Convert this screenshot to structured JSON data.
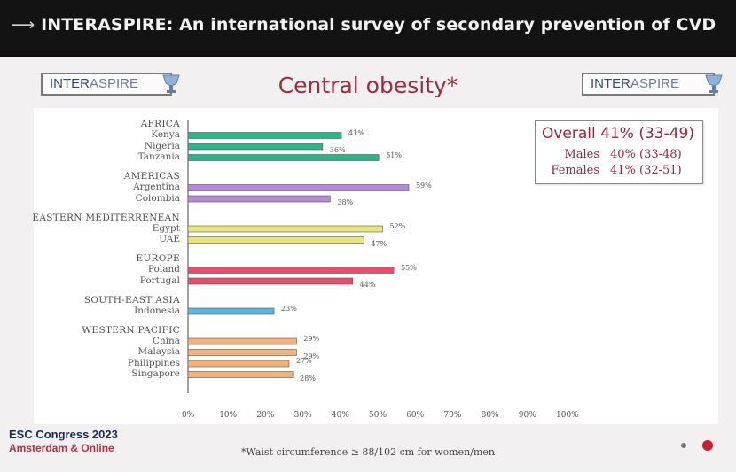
{
  "header": {
    "arrow": "⟶",
    "title": "INTERASPIRE: An international survey of secondary prevention of CVD"
  },
  "logo": {
    "text_a": "INTER",
    "text_b": "ASPIRE"
  },
  "slide_title": "Central obesity*",
  "overall": {
    "main": "Overall 41% (33-49)",
    "males_label": "Males",
    "males_value": "40% (33-48)",
    "females_label": "Females",
    "females_value": "41% (32-51)"
  },
  "footer": {
    "congress": "ESC Congress 2023",
    "location": "Amsterdam & Online",
    "note": "*Waist circumference ≥ 88/102 cm for women/men"
  },
  "colors": {
    "africa": "#2db58a",
    "americas": "#b48ad8",
    "eastern_mediterranean": "#e9e57a",
    "europe": "#e2506a",
    "south_east_asia": "#5db4dd",
    "western_pacific": "#f2b27a"
  },
  "chart_data": {
    "type": "bar",
    "orientation": "horizontal",
    "xlim": [
      0,
      100
    ],
    "xticks": [
      "0%",
      "10%",
      "20%",
      "30%",
      "40%",
      "50%",
      "60%",
      "70%",
      "80%",
      "90%",
      "100%"
    ],
    "regions": [
      {
        "name": "AFRICA",
        "color_key": "africa",
        "countries": [
          {
            "name": "Kenya",
            "value": 41,
            "label": "41%"
          },
          {
            "name": "Nigeria",
            "value": 36,
            "label": "36%"
          },
          {
            "name": "Tanzania",
            "value": 51,
            "label": "51%"
          }
        ]
      },
      {
        "name": "AMERICAS",
        "color_key": "americas",
        "countries": [
          {
            "name": "Argentina",
            "value": 59,
            "label": "59%"
          },
          {
            "name": "Colombia",
            "value": 38,
            "label": "38%"
          }
        ]
      },
      {
        "name": "EASTERN MEDITERRENEAN",
        "color_key": "eastern_mediterranean",
        "countries": [
          {
            "name": "Egypt",
            "value": 52,
            "label": "52%"
          },
          {
            "name": "UAE",
            "value": 47,
            "label": "47%"
          }
        ]
      },
      {
        "name": "EUROPE",
        "color_key": "europe",
        "countries": [
          {
            "name": "Poland",
            "value": 55,
            "label": "55%"
          },
          {
            "name": "Portugal",
            "value": 44,
            "label": "44%"
          }
        ]
      },
      {
        "name": "SOUTH-EAST ASIA",
        "color_key": "south_east_asia",
        "countries": [
          {
            "name": "Indonesia",
            "value": 23,
            "label": "23%"
          }
        ]
      },
      {
        "name": "WESTERN PACIFIC",
        "color_key": "western_pacific",
        "countries": [
          {
            "name": "China",
            "value": 29,
            "label": "29%"
          },
          {
            "name": "Malaysia",
            "value": 29,
            "label": "29%"
          },
          {
            "name": "Philippines",
            "value": 27,
            "label": "27%"
          },
          {
            "name": "Singapore",
            "value": 28,
            "label": "28%"
          }
        ]
      }
    ]
  }
}
